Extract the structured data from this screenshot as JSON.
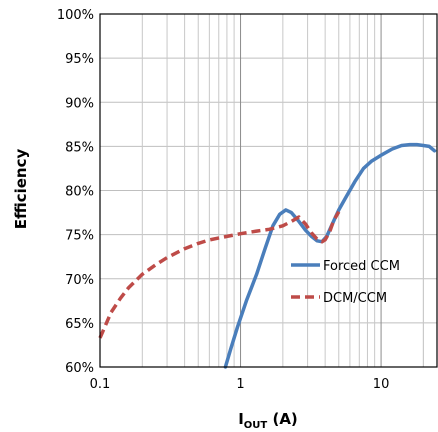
{
  "chart_data": {
    "type": "line",
    "xlabel": "IOUT (A)",
    "xlabel_main": "I",
    "xlabel_sub": "OUT",
    "xlabel_unit": " (A)",
    "ylabel": "Efficiency",
    "xscale": "log",
    "xlim": [
      0.1,
      25
    ],
    "ylim": [
      60,
      100
    ],
    "x_ticks": [
      {
        "value": 0.1,
        "label": "0.1"
      },
      {
        "value": 1,
        "label": "1"
      },
      {
        "value": 10,
        "label": "10"
      }
    ],
    "y_ticks": [
      {
        "value": 60,
        "label": "60%"
      },
      {
        "value": 65,
        "label": "65%"
      },
      {
        "value": 70,
        "label": "70%"
      },
      {
        "value": 75,
        "label": "75%"
      },
      {
        "value": 80,
        "label": "80%"
      },
      {
        "value": 85,
        "label": "85%"
      },
      {
        "value": 90,
        "label": "90%"
      },
      {
        "value": 95,
        "label": "95%"
      },
      {
        "value": 100,
        "label": "100%"
      }
    ],
    "grid": true,
    "legend": "lower-right",
    "series": [
      {
        "name": "Forced CCM",
        "color": "#4a7ebb",
        "style": "solid",
        "x": [
          0.78,
          0.85,
          0.95,
          1.1,
          1.3,
          1.5,
          1.7,
          1.9,
          2.1,
          2.3,
          2.6,
          2.9,
          3.2,
          3.5,
          3.8,
          4.1,
          4.5,
          5.0,
          5.6,
          6.5,
          7.5,
          8.5,
          10,
          12,
          14,
          16,
          18,
          20,
          22,
          24
        ],
        "y": [
          60.0,
          62.0,
          64.5,
          67.5,
          70.5,
          73.5,
          76.0,
          77.3,
          77.8,
          77.5,
          76.5,
          75.5,
          74.8,
          74.3,
          74.2,
          74.8,
          76.2,
          77.8,
          79.2,
          81.0,
          82.5,
          83.3,
          84.0,
          84.7,
          85.1,
          85.2,
          85.2,
          85.1,
          85.0,
          84.5
        ]
      },
      {
        "name": "DCM/CCM",
        "color": "#be4b48",
        "style": "dashed",
        "x": [
          0.1,
          0.11,
          0.12,
          0.14,
          0.16,
          0.2,
          0.25,
          0.3,
          0.4,
          0.5,
          0.6,
          0.8,
          1.0,
          1.3,
          1.6,
          2.0,
          2.3,
          2.6,
          2.9,
          3.2,
          3.5,
          3.8,
          4.0,
          4.3,
          4.6,
          5.0
        ],
        "y": [
          63.3,
          64.8,
          66.2,
          67.8,
          69.0,
          70.5,
          71.6,
          72.4,
          73.4,
          74.0,
          74.4,
          74.8,
          75.1,
          75.4,
          75.6,
          76.0,
          76.5,
          77.0,
          76.2,
          75.2,
          74.5,
          74.2,
          74.4,
          75.3,
          76.6,
          77.6
        ]
      }
    ]
  }
}
